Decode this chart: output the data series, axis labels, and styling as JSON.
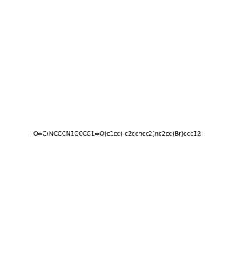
{
  "smiles": "O=C(NCCCN1CCCC1=O)c1cc(-c2ccncc2)nc2cc(Br)ccc12",
  "title": "",
  "background_color": "#ffffff",
  "line_color": "#2b1a00",
  "figure_width": 3.22,
  "figure_height": 3.74,
  "dpi": 100
}
